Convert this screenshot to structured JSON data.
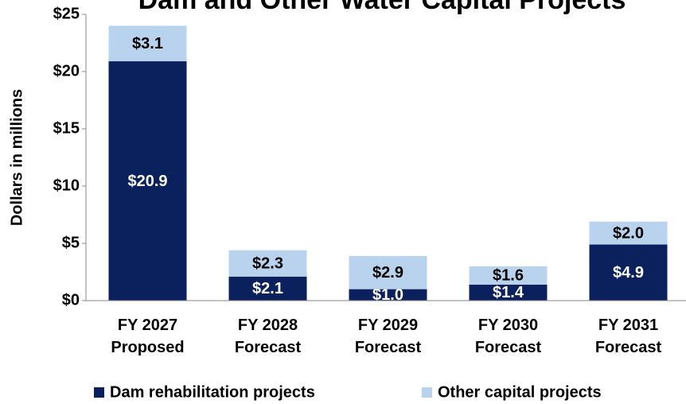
{
  "chart_data": {
    "type": "stacked_bar",
    "title": "Dam and Other Water Capital Projects",
    "y_label": "Dollars in millions",
    "categories": [
      [
        "FY 2027",
        "Proposed"
      ],
      [
        "FY 2028",
        "Forecast"
      ],
      [
        "FY 2029",
        "Forecast"
      ],
      [
        "FY 2030",
        "Forecast"
      ],
      [
        "FY 2031",
        "Forecast"
      ]
    ],
    "series": [
      {
        "name": "Dam rehabilitation projects",
        "color": "#0b215e",
        "label_color": "#ffffff",
        "values": [
          20.9,
          2.1,
          1.0,
          1.4,
          4.9
        ],
        "value_labels": [
          "$20.9",
          "$2.1",
          "$1.0",
          "$1.4",
          "$4.9"
        ]
      },
      {
        "name": "Other capital projects",
        "color": "#b9d3ee",
        "label_color": "#000000",
        "values": [
          3.1,
          2.3,
          2.9,
          1.6,
          2.0
        ],
        "value_labels": [
          "$3.1",
          "$2.3",
          "$2.9",
          "$1.6",
          "$2.0"
        ]
      }
    ],
    "ylim": [
      0,
      25
    ],
    "yticks": [
      {
        "value": 0,
        "label": "$0"
      },
      {
        "value": 5,
        "label": "$5"
      },
      {
        "value": 10,
        "label": "$10"
      },
      {
        "value": 15,
        "label": "$15"
      },
      {
        "value": 20,
        "label": "$20"
      },
      {
        "value": 25,
        "label": "$25"
      }
    ],
    "grid": false
  }
}
